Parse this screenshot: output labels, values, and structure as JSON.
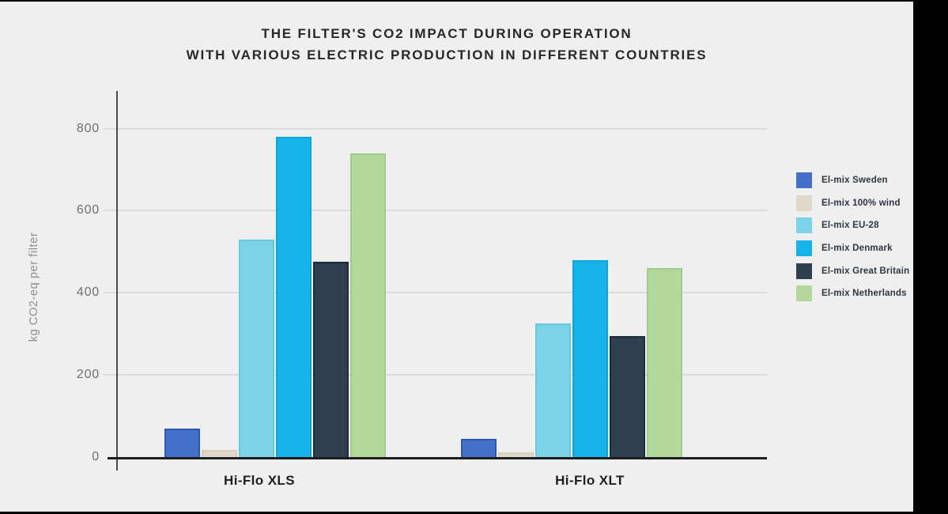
{
  "title": {
    "line1": "THE FILTER'S CO2 IMPACT DURING OPERATION",
    "line2": "WITH VARIOUS ELECTRIC PRODUCTION IN DIFFERENT COUNTRIES"
  },
  "chart_data": {
    "type": "bar",
    "title": "THE FILTER'S CO2 IMPACT DURING OPERATION WITH VARIOUS ELECTRIC PRODUCTION IN DIFFERENT COUNTRIES",
    "xlabel": "",
    "ylabel": "kg CO2-eq per filter",
    "categories": [
      "Hi-Flo XLS",
      "Hi-Flo XLT"
    ],
    "series": [
      {
        "name": "El-mix Sweden",
        "color": "#4470c8",
        "border_color": "#2b57b4",
        "values": [
          70,
          45
        ]
      },
      {
        "name": "El-mix 100% wind",
        "color": "#ded9c8",
        "border_color": "#d5cfba",
        "values": [
          18,
          12
        ]
      },
      {
        "name": "El-mix EU-28",
        "color": "#7cd2e6",
        "border_color": "#68c9de",
        "values": [
          530,
          325
        ]
      },
      {
        "name": "El-mix Denmark",
        "color": "#16b3e8",
        "border_color": "#0aa6db",
        "values": [
          780,
          480
        ]
      },
      {
        "name": "El-mix Great Britain",
        "color": "#2f3f50",
        "border_color": "#1d2c3d",
        "values": [
          475,
          295
        ]
      },
      {
        "name": "El-mix Netherlands",
        "color": "#b3d89b",
        "border_color": "#a2cb8b",
        "values": [
          740,
          460
        ]
      }
    ],
    "yticks": [
      0,
      200,
      400,
      600,
      800
    ],
    "ylim": [
      0,
      860
    ],
    "grid": true,
    "legend_position": "right",
    "background_color": "#efefef"
  }
}
